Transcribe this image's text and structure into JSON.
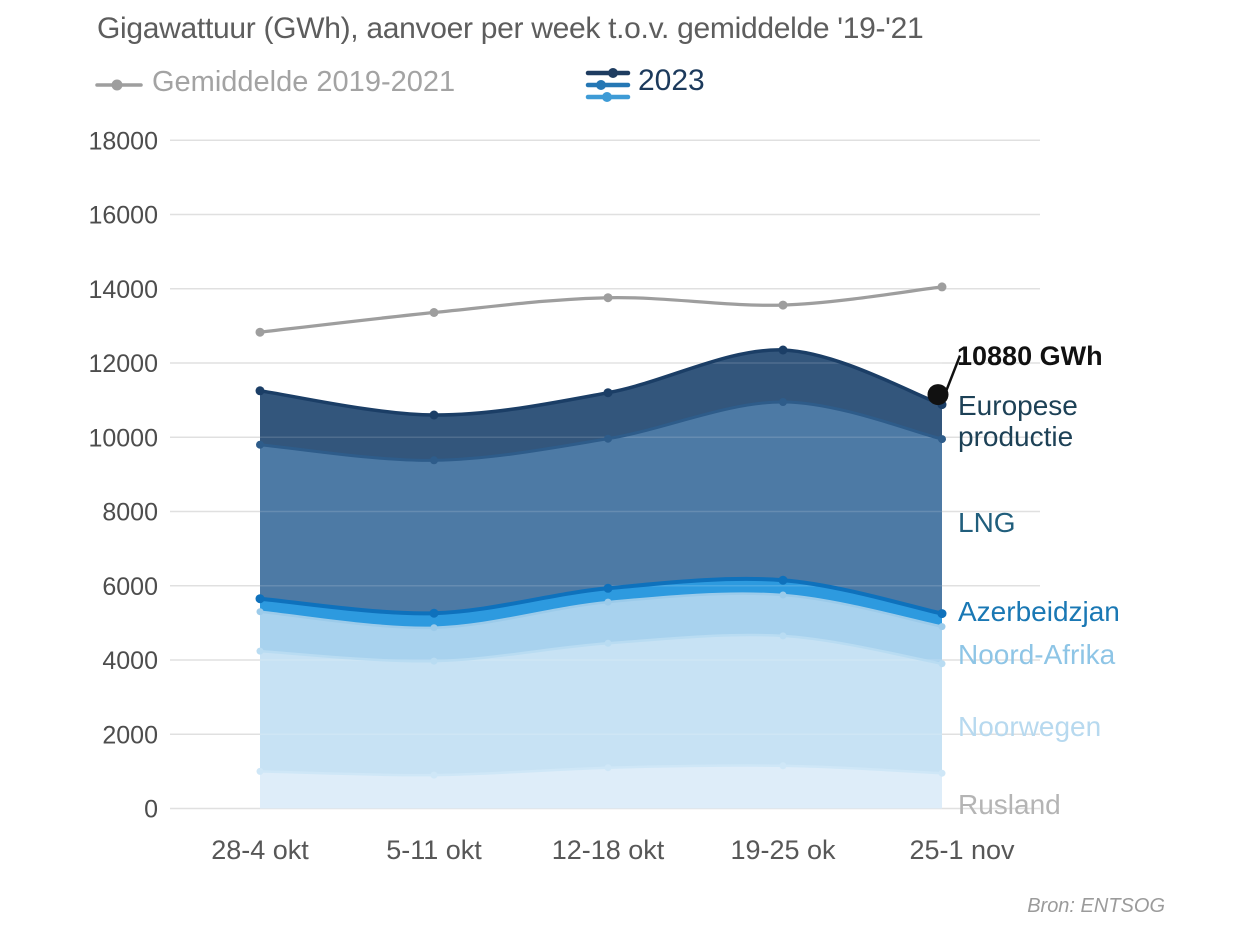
{
  "title": "Gigawattuur (GWh), aanvoer per week t.o.v. gemiddelde '19-'21",
  "legend": {
    "average": {
      "label": "Gemiddelde 2019-2021",
      "marker_color": "#9e9e9e",
      "text_color": "#a3a3a3"
    },
    "year": {
      "label": "2023",
      "text_color": "#1c3a5c",
      "icon_colors": [
        "#1e3c60",
        "#2577b4",
        "#3e9bd6"
      ]
    }
  },
  "callout": {
    "text": "10880 GWh",
    "value": 10880,
    "color": "#111111"
  },
  "source": {
    "text": "Bron: ENTSOG",
    "color": "#9b9b9b"
  },
  "chart_data": {
    "type": "area",
    "stacked": true,
    "title": "Gigawattuur (GWh), aanvoer per week t.o.v. gemiddelde '19-'21",
    "categories": [
      "28-4 okt",
      "5-11 okt",
      "12-18 okt",
      "19-25 ok",
      "25-1 nov"
    ],
    "ylim": [
      0,
      18000
    ],
    "yticks": [
      0,
      2000,
      4000,
      6000,
      8000,
      10000,
      12000,
      14000,
      16000,
      18000
    ],
    "grid": true,
    "grid_color": "#e0e0e0",
    "axis_text_color": "#4d4d4d",
    "legend_position": "top",
    "series": [
      {
        "name": "Rusland",
        "values": [
          1000,
          900,
          1100,
          1150,
          950
        ],
        "fill": "#deedf9",
        "line": "#cfe7f7",
        "label_color": "#b4b4b4"
      },
      {
        "name": "Noorwegen",
        "values": [
          3240,
          3070,
          3350,
          3500,
          2950
        ],
        "fill": "#c7e2f4",
        "line": "#b9dcf2",
        "label_color": "#b7d9ef"
      },
      {
        "name": "Noord-Afrika",
        "values": [
          1060,
          900,
          1110,
          1100,
          1000
        ],
        "fill": "#a8d2ee",
        "line": "#9ccbea",
        "label_color": "#8ec5e6"
      },
      {
        "name": "Azerbeidzjan",
        "values": [
          350,
          390,
          370,
          400,
          350
        ],
        "fill": "#2d9adf",
        "line": "#0e71bc",
        "label_color": "#1a78b4"
      },
      {
        "name": "LNG",
        "values": [
          4150,
          4120,
          4030,
          4800,
          4700
        ],
        "fill": "#4d7aa5",
        "line": "#2e5c8a",
        "label_color": "#205e7c"
      },
      {
        "name": "Europese productie",
        "values": [
          1450,
          1220,
          1240,
          1400,
          930
        ],
        "fill": "#33567c",
        "line": "#1b3e66",
        "label_color": "#1d4156"
      }
    ],
    "stack_totals": [
      11250,
      10600,
      11200,
      12350,
      10880
    ],
    "line_series": {
      "name": "Gemiddelde 2019-2021",
      "values": [
        12830,
        13360,
        13760,
        13560,
        14050
      ],
      "color": "#9e9e9e"
    }
  }
}
